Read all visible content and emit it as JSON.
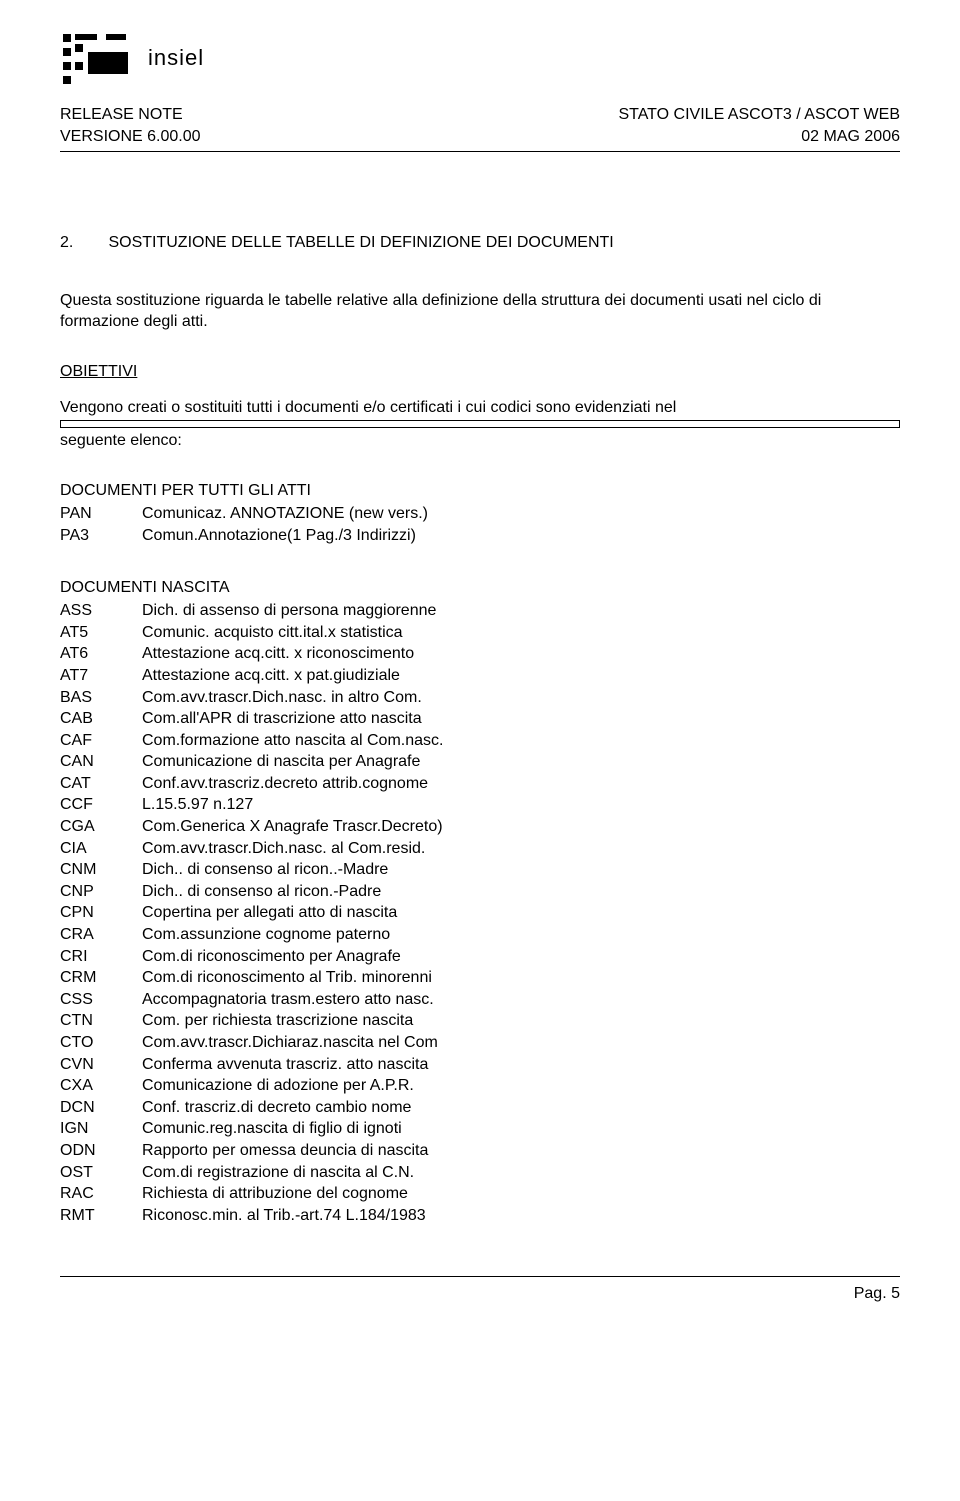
{
  "logo": {
    "text": "insiel"
  },
  "header": {
    "left_line1": "RELEASE NOTE",
    "left_line2": "VERSIONE 6.00.00",
    "right_line1": "STATO CIVILE ASCOT3 / ASCOT WEB",
    "right_line2": "02 MAG 2006"
  },
  "section": {
    "number": "2.",
    "title": "SOSTITUZIONE DELLE TABELLE DI DEFINIZIONE DEI DOCUMENTI"
  },
  "intro": "Questa sostituzione riguarda le tabelle relative alla definizione della struttura dei documenti usati nel ciclo di  formazione degli atti.",
  "obiettivi_label": "OBIETTIVI",
  "obiettivi_text": "Vengono creati o sostituiti tutti i documenti e/o certificati i cui codici sono evidenziati nel",
  "seguente": "seguente elenco:",
  "group1": {
    "title": "DOCUMENTI PER TUTTI GLI ATTI",
    "rows": [
      {
        "k": "PAN",
        "v": "Comunicaz. ANNOTAZIONE (new vers.)"
      },
      {
        "k": "PA3",
        "v": "Comun.Annotazione(1 Pag./3 Indirizzi)"
      }
    ]
  },
  "group2": {
    "title": "DOCUMENTI NASCITA",
    "rows": [
      {
        "k": "ASS",
        "v": "Dich. di assenso di persona maggiorenne"
      },
      {
        "k": "AT5",
        "v": "Comunic. acquisto citt.ital.x statistica"
      },
      {
        "k": "AT6",
        "v": "Attestazione acq.citt. x riconoscimento"
      },
      {
        "k": "AT7",
        "v": "Attestazione acq.citt. x pat.giudiziale"
      },
      {
        "k": "BAS",
        "v": "Com.avv.trascr.Dich.nasc. in altro Com."
      },
      {
        "k": "CAB",
        "v": "Com.all'APR di trascrizione atto nascita"
      },
      {
        "k": "CAF",
        "v": "Com.formazione atto nascita al Com.nasc."
      },
      {
        "k": "CAN",
        "v": "Comunicazione di nascita per Anagrafe"
      },
      {
        "k": "CAT",
        "v": "Conf.avv.trascriz.decreto attrib.cognome"
      },
      {
        "k": "CCF",
        "v": "L.15.5.97 n.127"
      },
      {
        "k": "CGA",
        "v": "Com.Generica X Anagrafe Trascr.Decreto)"
      },
      {
        "k": "CIA",
        "v": "Com.avv.trascr.Dich.nasc. al Com.resid."
      },
      {
        "k": "CNM",
        "v": "Dich.. di consenso al ricon..-Madre"
      },
      {
        "k": "CNP",
        "v": "Dich.. di consenso al ricon.-Padre"
      },
      {
        "k": "CPN",
        "v": "Copertina per allegati atto di nascita"
      },
      {
        "k": "CRA",
        "v": "Com.assunzione cognome paterno"
      },
      {
        "k": "CRI",
        "v": "Com.di riconoscimento per Anagrafe"
      },
      {
        "k": "CRM",
        "v": "Com.di riconoscimento al Trib. minorenni"
      },
      {
        "k": "CSS",
        "v": "Accompagnatoria trasm.estero atto nasc."
      },
      {
        "k": "CTN",
        "v": "Com. per richiesta trascrizione nascita"
      },
      {
        "k": "CTO",
        "v": "Com.avv.trascr.Dichiaraz.nascita nel Com"
      },
      {
        "k": "CVN",
        "v": "Conferma avvenuta trascriz. atto nascita"
      },
      {
        "k": "CXA",
        "v": "Comunicazione di adozione per A.P.R."
      },
      {
        "k": "DCN",
        "v": "Conf. trascriz.di decreto cambio nome"
      },
      {
        "k": "IGN",
        "v": "Comunic.reg.nascita di figlio di ignoti"
      },
      {
        "k": "ODN",
        "v": "Rapporto per omessa deuncia di nascita"
      },
      {
        "k": "OST",
        "v": "Com.di registrazione di nascita al C.N."
      },
      {
        "k": "RAC",
        "v": "Richiesta di attribuzione del cognome"
      },
      {
        "k": "RMT",
        "v": "Riconosc.min. al Trib.-art.74 L.184/1983"
      }
    ]
  },
  "footer": "Pag. 5"
}
